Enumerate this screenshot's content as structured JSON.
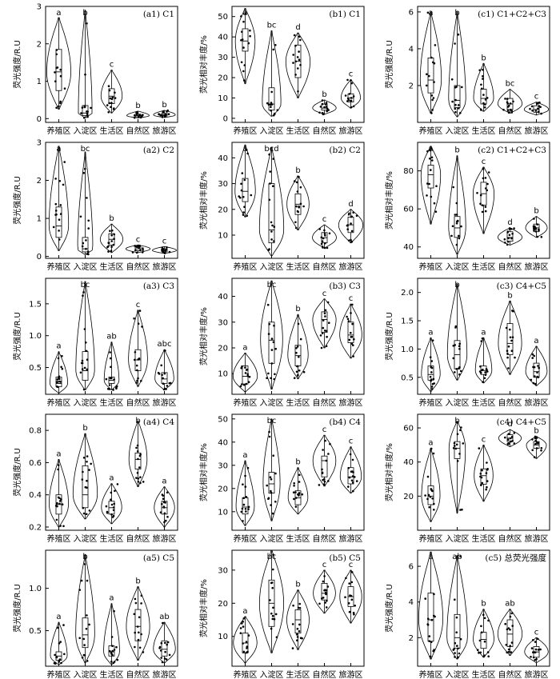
{
  "categories": [
    "养殖区",
    "入淀区",
    "生活区",
    "自然区",
    "旅游区"
  ],
  "chart_data": [
    {
      "id": "a1",
      "title": "(a1) C1",
      "ylabel": "荧光强度/R.U",
      "type": "violin",
      "ylim": [
        -0.1,
        3
      ],
      "yticks": [
        0,
        1,
        2,
        3
      ],
      "series": [
        {
          "letter": "a",
          "min": 0.25,
          "q1": 0.75,
          "median": 1.25,
          "q3": 1.85,
          "max": 2.7
        },
        {
          "letter": "b",
          "min": 0.02,
          "q1": 0.08,
          "median": 0.15,
          "q3": 0.35,
          "max": 2.9
        },
        {
          "letter": "c",
          "min": 0.15,
          "q1": 0.4,
          "median": 0.6,
          "q3": 0.8,
          "max": 1.3
        },
        {
          "letter": "b",
          "min": 0.02,
          "q1": 0.05,
          "median": 0.08,
          "q3": 0.12,
          "max": 0.2
        },
        {
          "letter": "b",
          "min": 0.03,
          "q1": 0.07,
          "median": 0.1,
          "q3": 0.14,
          "max": 0.22
        }
      ]
    },
    {
      "id": "b1",
      "title": "(b1) C1",
      "ylabel": "荧光相对丰度/%",
      "type": "violin",
      "ylim": [
        -2,
        55
      ],
      "yticks": [
        0,
        10,
        20,
        30,
        40,
        50
      ],
      "series": [
        {
          "letter": "a",
          "min": 17,
          "q1": 33,
          "median": 38,
          "q3": 44,
          "max": 54
        },
        {
          "letter": "bc",
          "min": 1,
          "q1": 4,
          "median": 7,
          "q3": 15,
          "max": 43
        },
        {
          "letter": "d",
          "min": 10,
          "q1": 20,
          "median": 28,
          "q3": 36,
          "max": 42
        },
        {
          "letter": "b",
          "min": 2,
          "q1": 4,
          "median": 5,
          "q3": 7,
          "max": 9
        },
        {
          "letter": "c",
          "min": 5,
          "q1": 8,
          "median": 10,
          "q3": 12,
          "max": 19
        }
      ]
    },
    {
      "id": "c1",
      "title": "(c1) C1+C2+C3",
      "ylabel": "荧光强度/R.U",
      "type": "violin",
      "ylim": [
        0,
        6.3
      ],
      "yticks": [
        2,
        4,
        6
      ],
      "series": [
        {
          "letter": "a",
          "min": 0.5,
          "q1": 1.6,
          "median": 2.3,
          "q3": 3.5,
          "max": 6
        },
        {
          "letter": "b",
          "min": 0.3,
          "q1": 0.8,
          "median": 1.2,
          "q3": 2.0,
          "max": 6
        },
        {
          "letter": "b",
          "min": 0.6,
          "q1": 1.0,
          "median": 1.3,
          "q3": 1.8,
          "max": 3.2
        },
        {
          "letter": "bc",
          "min": 0.5,
          "q1": 0.7,
          "median": 1.0,
          "q3": 1.3,
          "max": 1.8
        },
        {
          "letter": "c",
          "min": 0.4,
          "q1": 0.55,
          "median": 0.7,
          "q3": 0.9,
          "max": 1.1
        }
      ]
    },
    {
      "id": "a2",
      "title": "(a2) C2",
      "ylabel": "荧光强度/R.U",
      "type": "violin",
      "ylim": [
        -0.05,
        3
      ],
      "yticks": [
        0,
        1,
        2,
        3
      ],
      "series": [
        {
          "letter": "a",
          "min": 0.15,
          "q1": 0.5,
          "median": 0.8,
          "q3": 1.3,
          "max": 2.9
        },
        {
          "letter": "bc",
          "min": 0.05,
          "q1": 0.12,
          "median": 0.2,
          "q3": 0.5,
          "max": 2.75
        },
        {
          "letter": "b",
          "min": 0.1,
          "q1": 0.3,
          "median": 0.45,
          "q3": 0.6,
          "max": 0.85
        },
        {
          "letter": "c",
          "min": 0.1,
          "q1": 0.15,
          "median": 0.2,
          "q3": 0.25,
          "max": 0.3
        },
        {
          "letter": "c",
          "min": 0.08,
          "q1": 0.12,
          "median": 0.16,
          "q3": 0.2,
          "max": 0.26
        }
      ]
    },
    {
      "id": "b2",
      "title": "(b2) C2",
      "ylabel": "荧光相对丰度/%",
      "type": "violin",
      "ylim": [
        1,
        46
      ],
      "yticks": [
        10,
        20,
        30,
        40
      ],
      "series": [
        {
          "letter": "a",
          "min": 17,
          "q1": 23,
          "median": 27,
          "q3": 32,
          "max": 45
        },
        {
          "letter": "bcd",
          "min": 2,
          "q1": 7,
          "median": 12,
          "q3": 30,
          "max": 44
        },
        {
          "letter": "b",
          "min": 12,
          "q1": 18,
          "median": 22,
          "q3": 26,
          "max": 33
        },
        {
          "letter": "c",
          "min": 5,
          "q1": 7,
          "median": 9,
          "q3": 11,
          "max": 14
        },
        {
          "letter": "d",
          "min": 7,
          "q1": 11,
          "median": 14,
          "q3": 17,
          "max": 20
        }
      ]
    },
    {
      "id": "c2",
      "title": "(c2) C1+C2+C3",
      "ylabel": "荧光相对丰度/%",
      "type": "violin",
      "ylim": [
        34,
        95
      ],
      "yticks": [
        40,
        60,
        80
      ],
      "series": [
        {
          "letter": "a",
          "min": 52,
          "q1": 71,
          "median": 78,
          "q3": 83,
          "max": 93
        },
        {
          "letter": "b",
          "min": 36,
          "q1": 45,
          "median": 50,
          "q3": 56,
          "max": 88
        },
        {
          "letter": "c",
          "min": 47,
          "q1": 62,
          "median": 68,
          "q3": 74,
          "max": 82
        },
        {
          "letter": "d",
          "min": 41,
          "q1": 43,
          "median": 45,
          "q3": 48,
          "max": 50
        },
        {
          "letter": "b",
          "min": 45,
          "q1": 48,
          "median": 50,
          "q3": 52,
          "max": 56
        }
      ]
    },
    {
      "id": "a3",
      "title": "(a3) C3",
      "ylabel": "荧光强度/R.U",
      "type": "violin",
      "ylim": [
        0.08,
        1.9
      ],
      "yticks": [
        0.5,
        1.0,
        1.5
      ],
      "series": [
        {
          "letter": "a",
          "min": 0.1,
          "q1": 0.2,
          "median": 0.25,
          "q3": 0.35,
          "max": 0.75
        },
        {
          "letter": "bc",
          "min": 0.15,
          "q1": 0.3,
          "median": 0.45,
          "q3": 0.75,
          "max": 1.85
        },
        {
          "letter": "ab",
          "min": 0.15,
          "q1": 0.25,
          "median": 0.3,
          "q3": 0.35,
          "max": 0.9
        },
        {
          "letter": "c",
          "min": 0.2,
          "q1": 0.45,
          "median": 0.62,
          "q3": 0.78,
          "max": 1.4
        },
        {
          "letter": "abc",
          "min": 0.15,
          "q1": 0.25,
          "median": 0.32,
          "q3": 0.42,
          "max": 0.78
        }
      ]
    },
    {
      "id": "b3",
      "title": "(b3) C3",
      "ylabel": "荧光相对丰度/%",
      "type": "violin",
      "ylim": [
        2,
        47
      ],
      "yticks": [
        10,
        20,
        30,
        40
      ],
      "series": [
        {
          "letter": "a",
          "min": 3,
          "q1": 6,
          "median": 9,
          "q3": 13,
          "max": 18
        },
        {
          "letter": "bc",
          "min": 4,
          "q1": 14,
          "median": 23,
          "q3": 30,
          "max": 46
        },
        {
          "letter": "b",
          "min": 8,
          "q1": 13,
          "median": 17,
          "q3": 21,
          "max": 33
        },
        {
          "letter": "c",
          "min": 20,
          "q1": 26,
          "median": 31,
          "q3": 34,
          "max": 39
        },
        {
          "letter": "c",
          "min": 16,
          "q1": 22,
          "median": 25,
          "q3": 30,
          "max": 37
        }
      ]
    },
    {
      "id": "c3",
      "title": "(c3) C4+C5",
      "ylabel": "荧光强度/R.U",
      "type": "violin",
      "ylim": [
        0.2,
        2.25
      ],
      "yticks": [
        0.5,
        1.0,
        1.5,
        2.0
      ],
      "series": [
        {
          "letter": "a",
          "min": 0.25,
          "q1": 0.45,
          "median": 0.55,
          "q3": 0.7,
          "max": 1.2
        },
        {
          "letter": "b",
          "min": 0.45,
          "q1": 0.65,
          "median": 0.9,
          "q3": 1.15,
          "max": 2.15
        },
        {
          "letter": "a",
          "min": 0.4,
          "q1": 0.55,
          "median": 0.62,
          "q3": 0.7,
          "max": 1.2
        },
        {
          "letter": "b",
          "min": 0.55,
          "q1": 0.9,
          "median": 1.1,
          "q3": 1.45,
          "max": 1.85
        },
        {
          "letter": "a",
          "min": 0.35,
          "q1": 0.5,
          "median": 0.6,
          "q3": 0.75,
          "max": 1.05
        }
      ]
    },
    {
      "id": "a4",
      "title": "(a4) C4",
      "ylabel": "荧光强度/R.U",
      "type": "violin",
      "ylim": [
        0.18,
        0.9
      ],
      "yticks": [
        0.2,
        0.4,
        0.6,
        0.8
      ],
      "series": [
        {
          "letter": "a",
          "min": 0.2,
          "q1": 0.28,
          "median": 0.34,
          "q3": 0.4,
          "max": 0.62
        },
        {
          "letter": "b",
          "min": 0.25,
          "q1": 0.32,
          "median": 0.4,
          "q3": 0.58,
          "max": 0.78
        },
        {
          "letter": "a",
          "min": 0.22,
          "q1": 0.28,
          "median": 0.32,
          "q3": 0.36,
          "max": 0.47
        },
        {
          "letter": "b",
          "min": 0.45,
          "q1": 0.56,
          "median": 0.62,
          "q3": 0.66,
          "max": 0.86
        },
        {
          "letter": "a",
          "min": 0.2,
          "q1": 0.28,
          "median": 0.32,
          "q3": 0.36,
          "max": 0.45
        }
      ]
    },
    {
      "id": "b4",
      "title": "(b4) C4",
      "ylabel": "荧光相对丰度/%",
      "type": "violin",
      "ylim": [
        2,
        52
      ],
      "yticks": [
        10,
        20,
        30,
        40,
        50
      ],
      "series": [
        {
          "letter": "a",
          "min": 4,
          "q1": 9,
          "median": 12,
          "q3": 16,
          "max": 32
        },
        {
          "letter": "bc",
          "min": 6,
          "q1": 18,
          "median": 22,
          "q3": 27,
          "max": 50
        },
        {
          "letter": "b",
          "min": 9,
          "q1": 13,
          "median": 16,
          "q3": 19,
          "max": 29
        },
        {
          "letter": "c",
          "min": 21,
          "q1": 25,
          "median": 32,
          "q3": 34,
          "max": 43
        },
        {
          "letter": "c",
          "min": 18,
          "q1": 22,
          "median": 25,
          "q3": 29,
          "max": 38
        }
      ]
    },
    {
      "id": "c4",
      "title": "(c4) C4+C5",
      "ylabel": "荧光相对丰度/%",
      "type": "violin",
      "ylim": [
        0,
        68
      ],
      "yticks": [
        20,
        40,
        60
      ],
      "series": [
        {
          "letter": "a",
          "min": 5,
          "q1": 15,
          "median": 20,
          "q3": 26,
          "max": 48
        },
        {
          "letter": "b",
          "min": 10,
          "q1": 42,
          "median": 48,
          "q3": 52,
          "max": 64
        },
        {
          "letter": "c",
          "min": 17,
          "q1": 27,
          "median": 32,
          "q3": 36,
          "max": 50
        },
        {
          "letter": "d",
          "min": 49,
          "q1": 52,
          "median": 54,
          "q3": 56,
          "max": 59
        },
        {
          "letter": "b",
          "min": 42,
          "q1": 48,
          "median": 50,
          "q3": 52,
          "max": 55
        }
      ]
    },
    {
      "id": "a5",
      "title": "(a5) C5",
      "ylabel": "荧光强度/R.U",
      "type": "violin",
      "ylim": [
        0.08,
        1.45
      ],
      "yticks": [
        0.5,
        1.0
      ],
      "series": [
        {
          "letter": "a",
          "min": 0.1,
          "q1": 0.15,
          "median": 0.2,
          "q3": 0.25,
          "max": 0.6
        },
        {
          "letter": "b",
          "min": 0.12,
          "q1": 0.3,
          "median": 0.45,
          "q3": 0.65,
          "max": 1.4
        },
        {
          "letter": "a",
          "min": 0.1,
          "q1": 0.2,
          "median": 0.25,
          "q3": 0.32,
          "max": 0.82
        },
        {
          "letter": "b",
          "min": 0.15,
          "q1": 0.38,
          "median": 0.55,
          "q3": 0.75,
          "max": 1.02
        },
        {
          "letter": "ab",
          "min": 0.12,
          "q1": 0.2,
          "median": 0.28,
          "q3": 0.38,
          "max": 0.6
        }
      ]
    },
    {
      "id": "b5",
      "title": "(b5) C5",
      "ylabel": "荧光相对丰度/%",
      "type": "violin",
      "ylim": [
        1,
        36
      ],
      "yticks": [
        10,
        20,
        30
      ],
      "series": [
        {
          "letter": "a",
          "min": 2,
          "q1": 5,
          "median": 8,
          "q3": 11,
          "max": 16
        },
        {
          "letter": "bc",
          "min": 5,
          "q1": 13,
          "median": 20,
          "q3": 27,
          "max": 36
        },
        {
          "letter": "b",
          "min": 6,
          "q1": 11,
          "median": 15,
          "q3": 18,
          "max": 24
        },
        {
          "letter": "c",
          "min": 17,
          "q1": 21,
          "median": 23,
          "q3": 26,
          "max": 30
        },
        {
          "letter": "c",
          "min": 14,
          "q1": 19,
          "median": 22,
          "q3": 25,
          "max": 30
        }
      ]
    },
    {
      "id": "c5",
      "title": "(c5) 总荧光强度",
      "ylabel": "荧光强度/R.U",
      "type": "violin",
      "ylim": [
        0.4,
        6.9
      ],
      "yticks": [
        2,
        4,
        6
      ],
      "series": [
        {
          "letter": "a",
          "min": 0.8,
          "q1": 1.8,
          "median": 3.0,
          "q3": 4.5,
          "max": 6.8
        },
        {
          "letter": "ab",
          "min": 0.8,
          "q1": 1.4,
          "median": 2.0,
          "q3": 3.3,
          "max": 6.6
        },
        {
          "letter": "b",
          "min": 0.9,
          "q1": 1.4,
          "median": 1.9,
          "q3": 2.3,
          "max": 3.6
        },
        {
          "letter": "ab",
          "min": 1.0,
          "q1": 1.5,
          "median": 2.2,
          "q3": 3.0,
          "max": 3.6
        },
        {
          "letter": "c",
          "min": 0.6,
          "q1": 0.9,
          "median": 1.2,
          "q3": 1.5,
          "max": 2.0
        }
      ]
    }
  ]
}
